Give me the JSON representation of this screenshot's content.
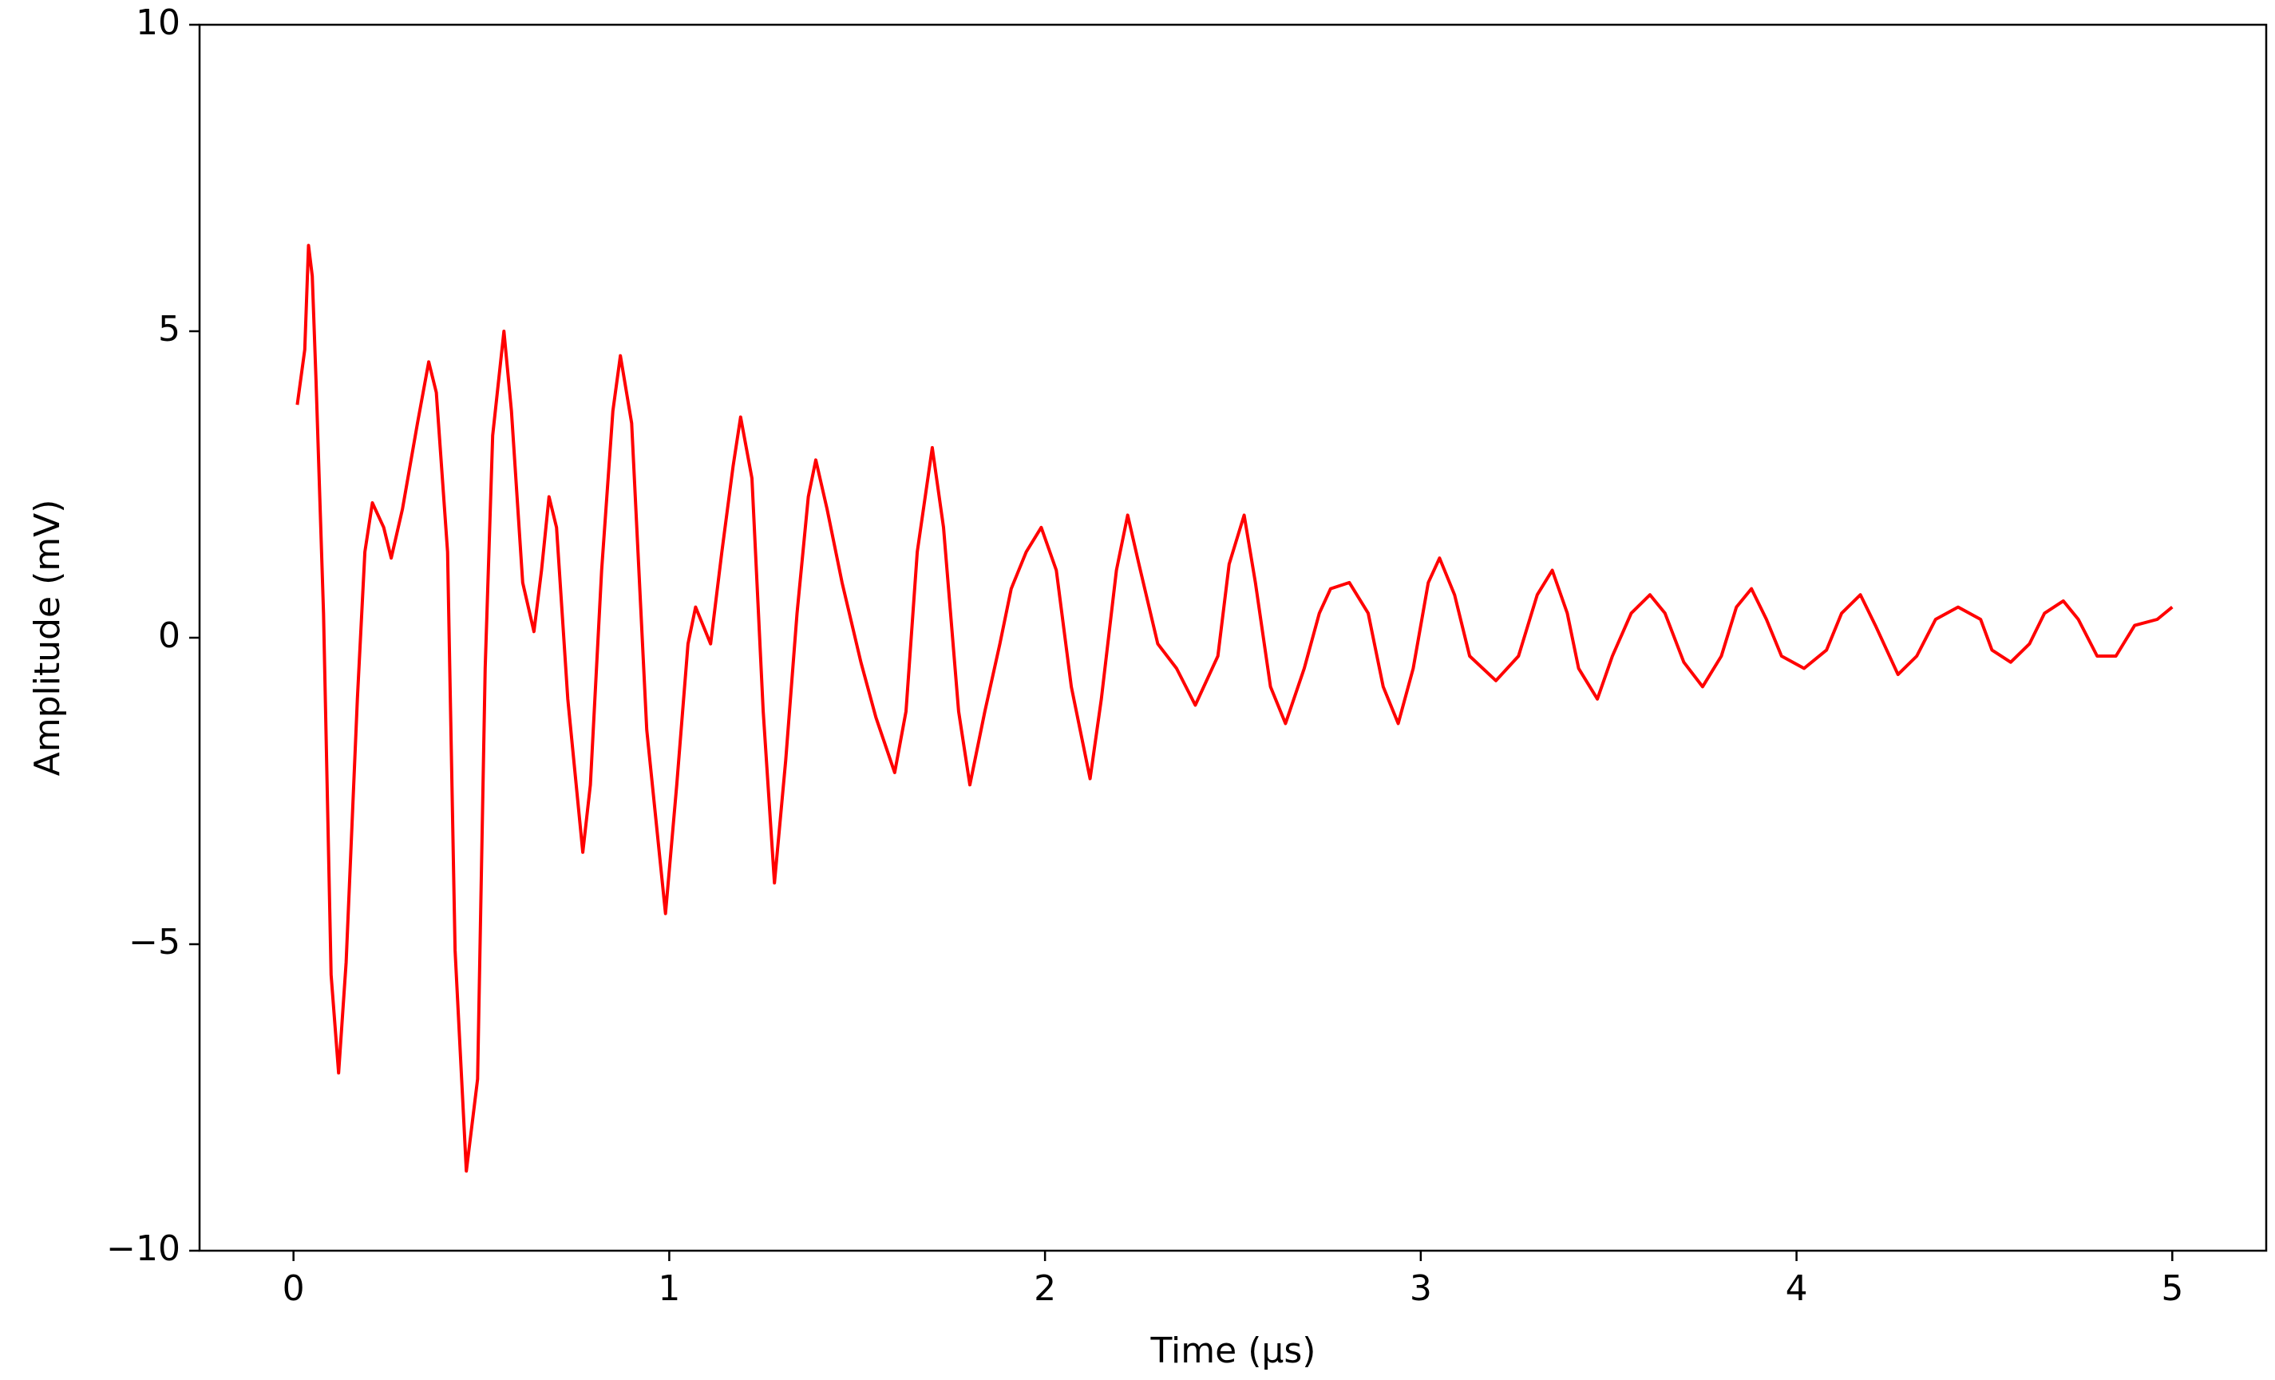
{
  "chart_data": {
    "type": "line",
    "xlabel": "Time (µs)",
    "ylabel": "Amplitude (mV)",
    "xlim": [
      -0.25,
      5.25
    ],
    "ylim": [
      -10,
      10
    ],
    "xticks": [
      0,
      1,
      2,
      3,
      4,
      5
    ],
    "yticks": [
      {
        "value": -10,
        "label": "−10"
      },
      {
        "value": -5,
        "label": "−5"
      },
      0,
      5,
      10
    ],
    "grid": false,
    "series": [
      {
        "color": "#ff0000",
        "x": [
          0.01,
          0.03,
          0.04,
          0.05,
          0.06,
          0.08,
          0.1,
          0.12,
          0.14,
          0.17,
          0.19,
          0.21,
          0.24,
          0.26,
          0.29,
          0.33,
          0.36,
          0.38,
          0.41,
          0.43,
          0.46,
          0.49,
          0.51,
          0.53,
          0.56,
          0.58,
          0.61,
          0.64,
          0.66,
          0.68,
          0.7,
          0.73,
          0.77,
          0.79,
          0.82,
          0.85,
          0.87,
          0.9,
          0.94,
          0.99,
          1.02,
          1.05,
          1.07,
          1.09,
          1.11,
          1.14,
          1.17,
          1.19,
          1.22,
          1.25,
          1.28,
          1.31,
          1.34,
          1.37,
          1.39,
          1.42,
          1.46,
          1.51,
          1.55,
          1.6,
          1.63,
          1.66,
          1.7,
          1.73,
          1.77,
          1.8,
          1.84,
          1.88,
          1.91,
          1.95,
          1.99,
          2.03,
          2.07,
          2.12,
          2.15,
          2.19,
          2.22,
          2.25,
          2.3,
          2.35,
          2.4,
          2.46,
          2.49,
          2.53,
          2.56,
          2.6,
          2.64,
          2.69,
          2.73,
          2.76,
          2.81,
          2.86,
          2.9,
          2.94,
          2.98,
          3.02,
          3.05,
          3.09,
          3.13,
          3.2,
          3.26,
          3.31,
          3.35,
          3.39,
          3.42,
          3.47,
          3.51,
          3.56,
          3.61,
          3.65,
          3.7,
          3.75,
          3.8,
          3.84,
          3.88,
          3.92,
          3.96,
          4.02,
          4.08,
          4.12,
          4.17,
          4.21,
          4.27,
          4.32,
          4.37,
          4.43,
          4.49,
          4.52,
          4.57,
          4.62,
          4.66,
          4.71,
          4.75,
          4.8,
          4.85,
          4.9,
          4.96,
          5.0
        ],
        "values": [
          3.8,
          4.7,
          6.4,
          5.9,
          4.2,
          0.4,
          -5.5,
          -7.1,
          -5.3,
          -1.0,
          1.4,
          2.2,
          1.8,
          1.3,
          2.1,
          3.5,
          4.5,
          4.0,
          1.4,
          -5.1,
          -8.7,
          -7.2,
          -0.5,
          3.3,
          5.0,
          3.7,
          0.9,
          0.1,
          1.1,
          2.3,
          1.8,
          -1.0,
          -3.5,
          -2.4,
          1.1,
          3.7,
          4.6,
          3.5,
          -1.5,
          -4.5,
          -2.4,
          -0.1,
          0.5,
          0.2,
          -0.1,
          1.4,
          2.8,
          3.6,
          2.6,
          -1.2,
          -4.0,
          -2.0,
          0.4,
          2.3,
          2.9,
          2.1,
          0.9,
          -0.4,
          -1.3,
          -2.2,
          -1.2,
          1.4,
          3.1,
          1.8,
          -1.2,
          -2.4,
          -1.2,
          -0.1,
          0.8,
          1.4,
          1.8,
          1.1,
          -0.8,
          -2.3,
          -1.0,
          1.1,
          2.0,
          1.2,
          -0.1,
          -0.5,
          -1.1,
          -0.3,
          1.2,
          2.0,
          0.9,
          -0.8,
          -1.4,
          -0.5,
          0.4,
          0.8,
          0.9,
          0.4,
          -0.8,
          -1.4,
          -0.5,
          0.9,
          1.3,
          0.7,
          -0.3,
          -0.7,
          -0.3,
          0.7,
          1.1,
          0.4,
          -0.5,
          -1.0,
          -0.3,
          0.4,
          0.7,
          0.4,
          -0.4,
          -0.8,
          -0.3,
          0.5,
          0.8,
          0.3,
          -0.3,
          -0.5,
          -0.2,
          0.4,
          0.7,
          0.2,
          -0.6,
          -0.3,
          0.3,
          0.5,
          0.3,
          -0.2,
          -0.4,
          -0.1,
          0.4,
          0.6,
          0.3,
          -0.3,
          -0.3,
          0.2,
          0.3,
          0.5
        ]
      }
    ]
  }
}
